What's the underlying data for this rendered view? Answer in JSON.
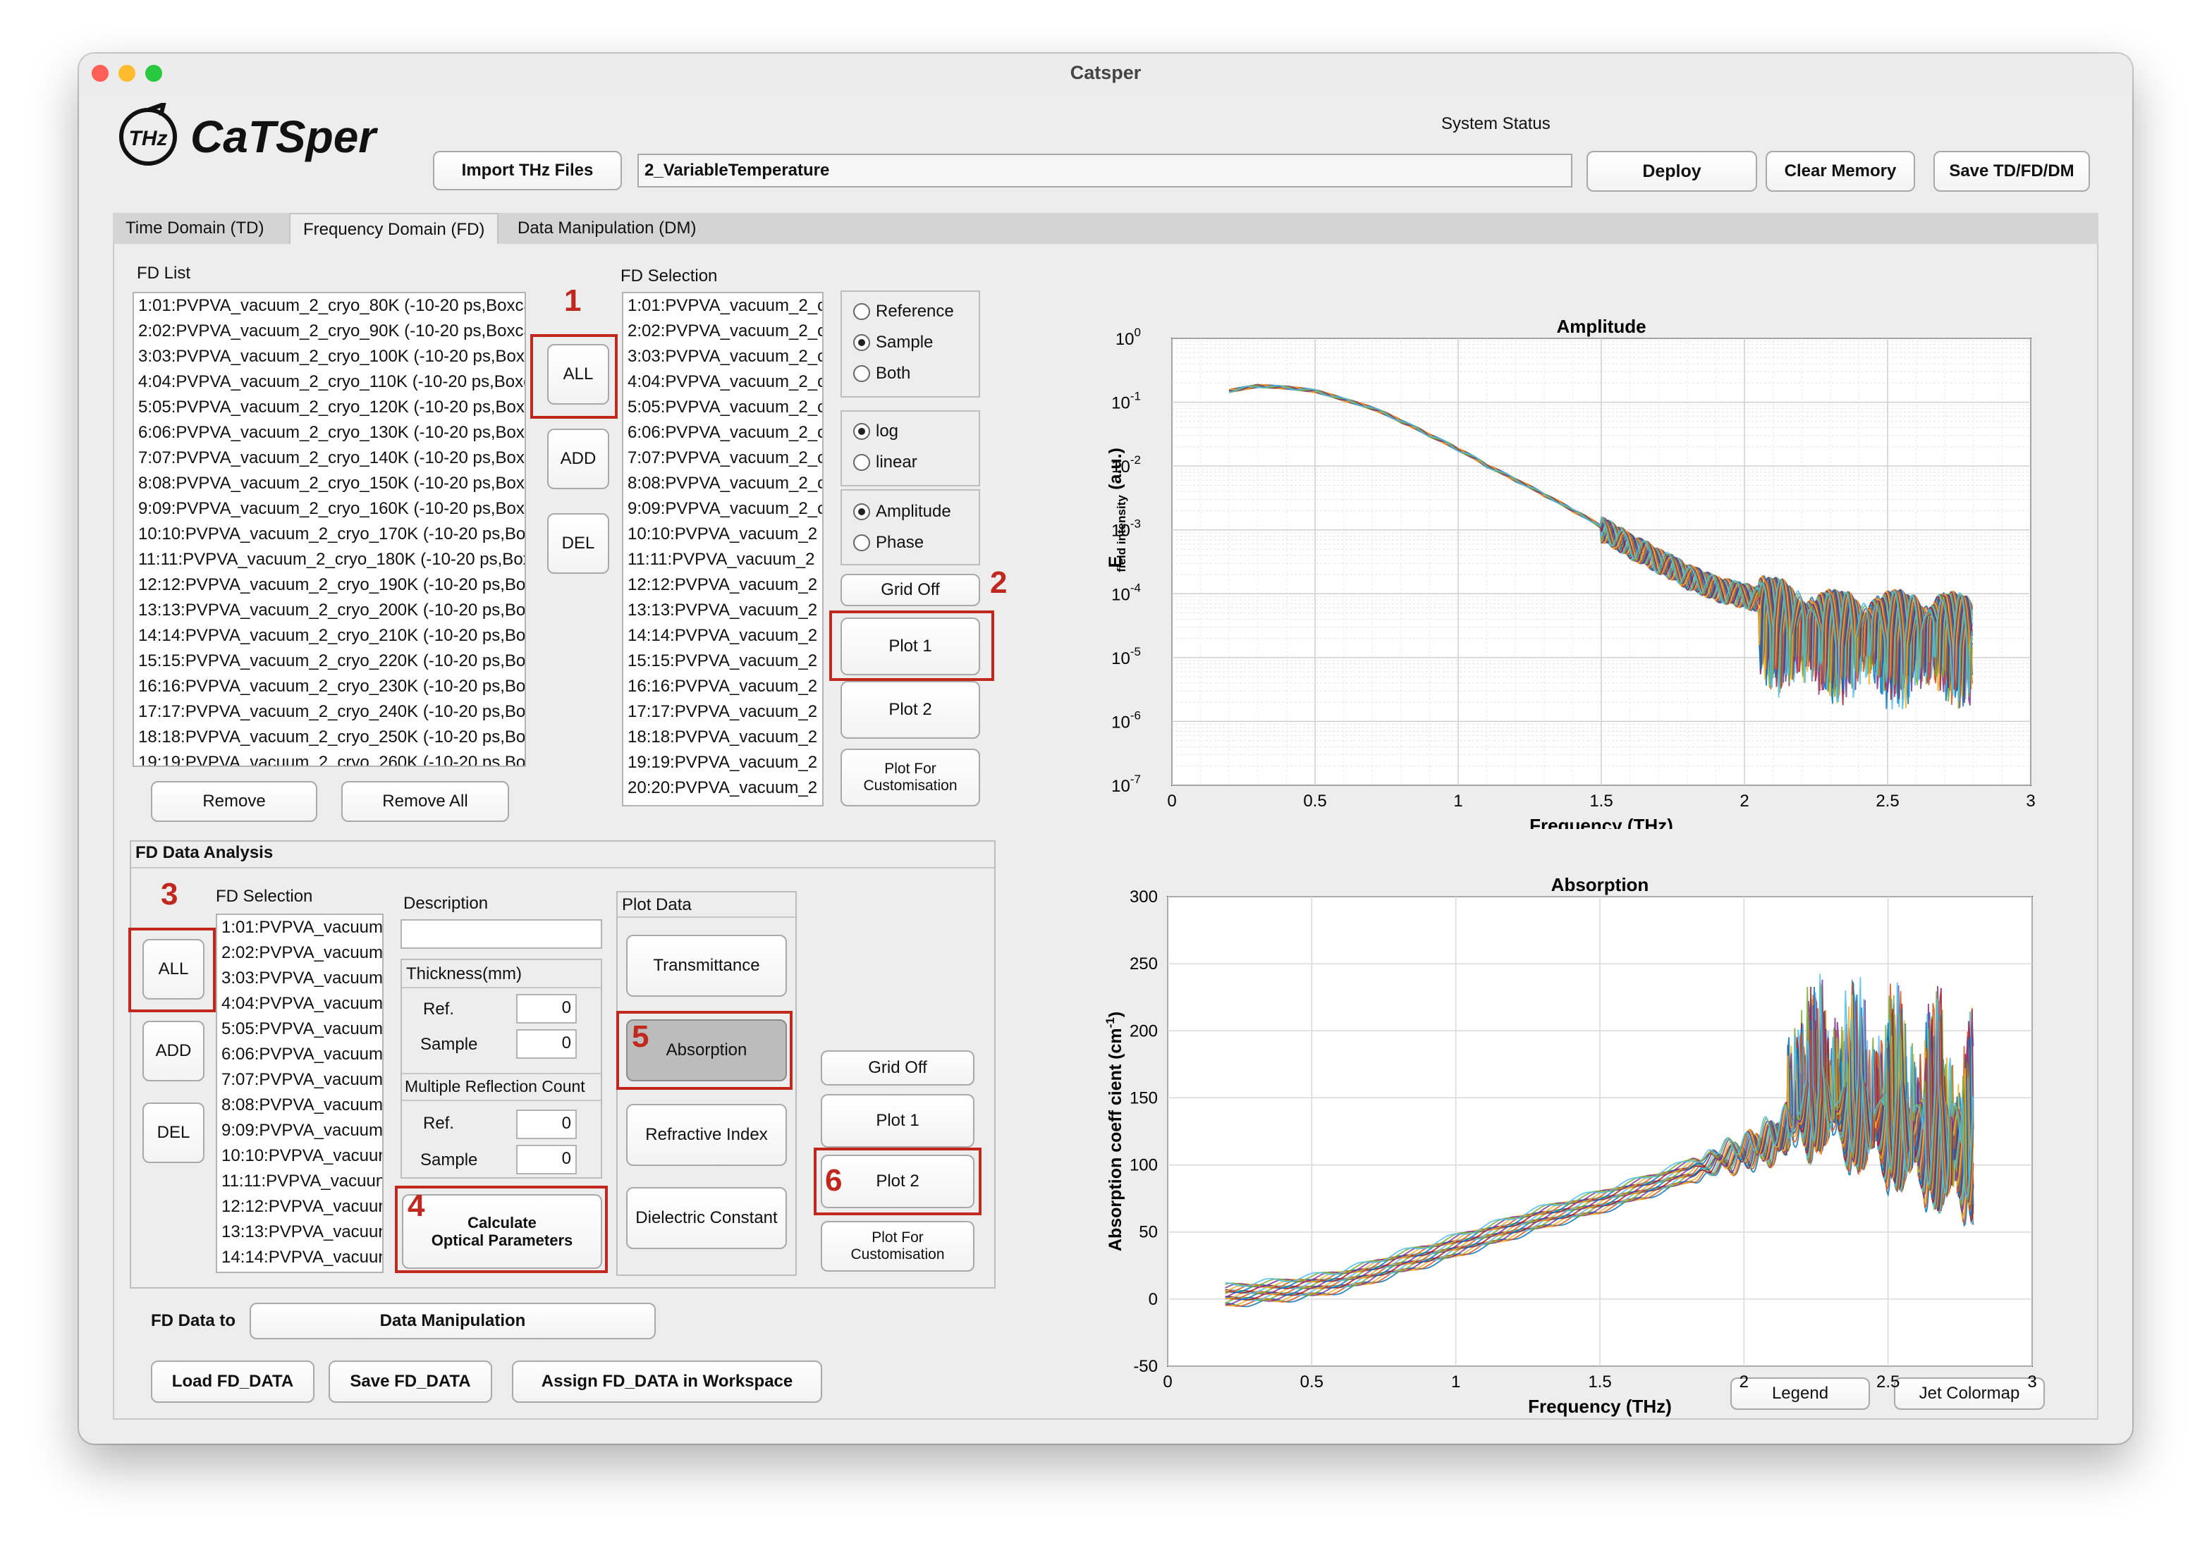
{
  "window": {
    "title": "Catsper"
  },
  "header": {
    "logo_badge": "THz",
    "logo_text": "CaTSper",
    "import_button": "Import THz Files",
    "path_value": "2_VariableTemperature",
    "system_status_label": "System Status",
    "deploy_button": "Deploy",
    "clear_memory_button": "Clear Memory",
    "save_button": "Save TD/FD/DM"
  },
  "tabs": [
    "Time Domain (TD)",
    "Frequency Domain (FD)",
    "Data Manipulation (DM)"
  ],
  "fd_list": {
    "title": "FD List",
    "items": [
      "1:01:PVPVA_vacuum_2_cryo_80K (-10-20 ps,Boxca",
      "2:02:PVPVA_vacuum_2_cryo_90K (-10-20 ps,Boxca",
      "3:03:PVPVA_vacuum_2_cryo_100K (-10-20 ps,Boxc",
      "4:04:PVPVA_vacuum_2_cryo_110K (-10-20 ps,Boxc",
      "5:05:PVPVA_vacuum_2_cryo_120K (-10-20 ps,Boxc",
      "6:06:PVPVA_vacuum_2_cryo_130K (-10-20 ps,Boxc",
      "7:07:PVPVA_vacuum_2_cryo_140K (-10-20 ps,Boxc",
      "8:08:PVPVA_vacuum_2_cryo_150K (-10-20 ps,Boxc",
      "9:09:PVPVA_vacuum_2_cryo_160K (-10-20 ps,Boxc",
      "10:10:PVPVA_vacuum_2_cryo_170K (-10-20 ps,Box",
      "11:11:PVPVA_vacuum_2_cryo_180K (-10-20 ps,Box",
      "12:12:PVPVA_vacuum_2_cryo_190K (-10-20 ps,Box",
      "13:13:PVPVA_vacuum_2_cryo_200K (-10-20 ps,Box",
      "14:14:PVPVA_vacuum_2_cryo_210K (-10-20 ps,Box",
      "15:15:PVPVA_vacuum_2_cryo_220K (-10-20 ps,Box",
      "16:16:PVPVA_vacuum_2_cryo_230K (-10-20 ps,Box",
      "17:17:PVPVA_vacuum_2_cryo_240K (-10-20 ps,Box",
      "18:18:PVPVA_vacuum_2_cryo_250K (-10-20 ps,Box",
      "19:19:PVPVA_vacuum_2_cryo_260K (-10-20 ps,Box"
    ],
    "all_button": "ALL",
    "add_button": "ADD",
    "del_button": "DEL",
    "remove_button": "Remove",
    "remove_all_button": "Remove All"
  },
  "fd_selection": {
    "title": "FD Selection",
    "items": [
      "1:01:PVPVA_vacuum_2_c",
      "2:02:PVPVA_vacuum_2_c",
      "3:03:PVPVA_vacuum_2_c",
      "4:04:PVPVA_vacuum_2_c",
      "5:05:PVPVA_vacuum_2_c",
      "6:06:PVPVA_vacuum_2_c",
      "7:07:PVPVA_vacuum_2_c",
      "8:08:PVPVA_vacuum_2_c",
      "9:09:PVPVA_vacuum_2_c",
      "10:10:PVPVA_vacuum_2",
      "11:11:PVPVA_vacuum_2",
      "12:12:PVPVA_vacuum_2",
      "13:13:PVPVA_vacuum_2",
      "14:14:PVPVA_vacuum_2",
      "15:15:PVPVA_vacuum_2",
      "16:16:PVPVA_vacuum_2",
      "17:17:PVPVA_vacuum_2",
      "18:18:PVPVA_vacuum_2",
      "19:19:PVPVA_vacuum_2",
      "20:20:PVPVA_vacuum_2"
    ]
  },
  "plot_options": {
    "source": [
      "Reference",
      "Sample",
      "Both"
    ],
    "source_selected": 1,
    "scale": [
      "log",
      "linear"
    ],
    "scale_selected": 0,
    "quantity": [
      "Amplitude",
      "Phase"
    ],
    "quantity_selected": 0,
    "grid_button": "Grid Off",
    "plot1_button": "Plot 1",
    "plot2_button": "Plot 2",
    "custom_button": [
      "Plot For",
      "Customisation"
    ]
  },
  "analysis": {
    "title": "FD Data Analysis",
    "selection_title": "FD Selection",
    "selection_items": [
      "1:01:PVPVA_vacuum_",
      "2:02:PVPVA_vacuum_",
      "3:03:PVPVA_vacuum_",
      "4:04:PVPVA_vacuum_",
      "5:05:PVPVA_vacuum_",
      "6:06:PVPVA_vacuum_",
      "7:07:PVPVA_vacuum_",
      "8:08:PVPVA_vacuum_",
      "9:09:PVPVA_vacuum_",
      "10:10:PVPVA_vacuun",
      "11:11:PVPVA_vacuun",
      "12:12:PVPVA_vacuun",
      "13:13:PVPVA_vacuun",
      "14:14:PVPVA_vacuun"
    ],
    "all_button": "ALL",
    "add_button": "ADD",
    "del_button": "DEL",
    "description_label": "Description",
    "description_value": "",
    "thickness_label": "Thickness(mm)",
    "ref_label": "Ref.",
    "sample_label": "Sample",
    "thickness_ref": "0",
    "thickness_sample": "0",
    "reflection_label": "Multiple Reflection Count",
    "reflection_ref": "0",
    "reflection_sample": "0",
    "calculate_button": [
      "Calculate",
      "Optical Parameters"
    ],
    "plot_data_label": "Plot Data",
    "transmittance_button": "Transmittance",
    "absorption_button": "Absorption",
    "refractive_button": "Refractive Index",
    "dielectric_button": "Dielectric Constant",
    "grid_button": "Grid Off",
    "plot1_button": "Plot 1",
    "plot2_button": "Plot 2",
    "custom_button": [
      "Plot For",
      "Customisation"
    ]
  },
  "bottom": {
    "fd_to_label": "FD Data to",
    "fd_to_value": "Data Manipulation",
    "load_button": "Load FD_DATA",
    "save_button": "Save FD_DATA",
    "assign_button": "Assign FD_DATA in Workspace",
    "legend_button": "Legend",
    "colormap_button": "Jet Colormap"
  },
  "annotations": [
    "1",
    "2",
    "3",
    "4",
    "5",
    "6"
  ],
  "chart_data": [
    {
      "type": "line",
      "title": "Amplitude",
      "xlabel": "Frequency (THz)",
      "ylabel_main": "E",
      "ylabel_sub": "field intensity",
      "ylabel_unit": "(a.u.)",
      "yscale": "log",
      "xlim": [
        0,
        3
      ],
      "ylim": [
        1e-07,
        1
      ],
      "xticks": [
        "0",
        "0.5",
        "1",
        "1.5",
        "2",
        "2.5",
        "3"
      ],
      "yticks_exp": [
        "0",
        "-1",
        "-2",
        "-3",
        "-4",
        "-5",
        "-6",
        "-7"
      ],
      "grid": true,
      "series_count": 20,
      "x": [
        0.2,
        0.3,
        0.4,
        0.5,
        0.6,
        0.7,
        0.8,
        0.9,
        1.0,
        1.1,
        1.2,
        1.3,
        1.4,
        1.5,
        1.6,
        1.7,
        1.8,
        1.9,
        2.0,
        2.1,
        2.2,
        2.3,
        2.4,
        2.5,
        2.6,
        2.7,
        2.8
      ],
      "y": [
        0.15,
        0.18,
        0.17,
        0.15,
        0.11,
        0.08,
        0.05,
        0.03,
        0.018,
        0.01,
        0.006,
        0.0035,
        0.002,
        0.0011,
        0.0006,
        0.00035,
        0.0002,
        0.00013,
        0.0001,
        8e-05,
        6e-05,
        5e-05,
        5e-05,
        5e-05,
        5e-05,
        5e-05,
        4e-05
      ]
    },
    {
      "type": "line",
      "title": "Absorption",
      "xlabel": "Frequency (THz)",
      "ylabel": "Absorption coeff cient  (cm",
      "ylabel_sup": "-1",
      "xlim": [
        0,
        3
      ],
      "ylim": [
        -50,
        300
      ],
      "xticks": [
        "0",
        "0.5",
        "1",
        "1.5",
        "2",
        "2.5",
        "3"
      ],
      "yticks": [
        "300",
        "250",
        "200",
        "150",
        "100",
        "50",
        "0",
        "-50"
      ],
      "grid": true,
      "series_count": 20,
      "x": [
        0.2,
        0.3,
        0.4,
        0.5,
        0.6,
        0.7,
        0.8,
        0.9,
        1.0,
        1.1,
        1.2,
        1.3,
        1.4,
        1.5,
        1.6,
        1.7,
        1.8,
        1.9,
        2.0,
        2.1,
        2.2,
        2.3,
        2.4,
        2.5,
        2.6,
        2.7,
        2.8
      ],
      "y": [
        3,
        5,
        7,
        10,
        14,
        20,
        27,
        33,
        40,
        47,
        54,
        61,
        67,
        73,
        80,
        87,
        95,
        103,
        110,
        118,
        135,
        140,
        130,
        125,
        118,
        112,
        105
      ]
    }
  ]
}
